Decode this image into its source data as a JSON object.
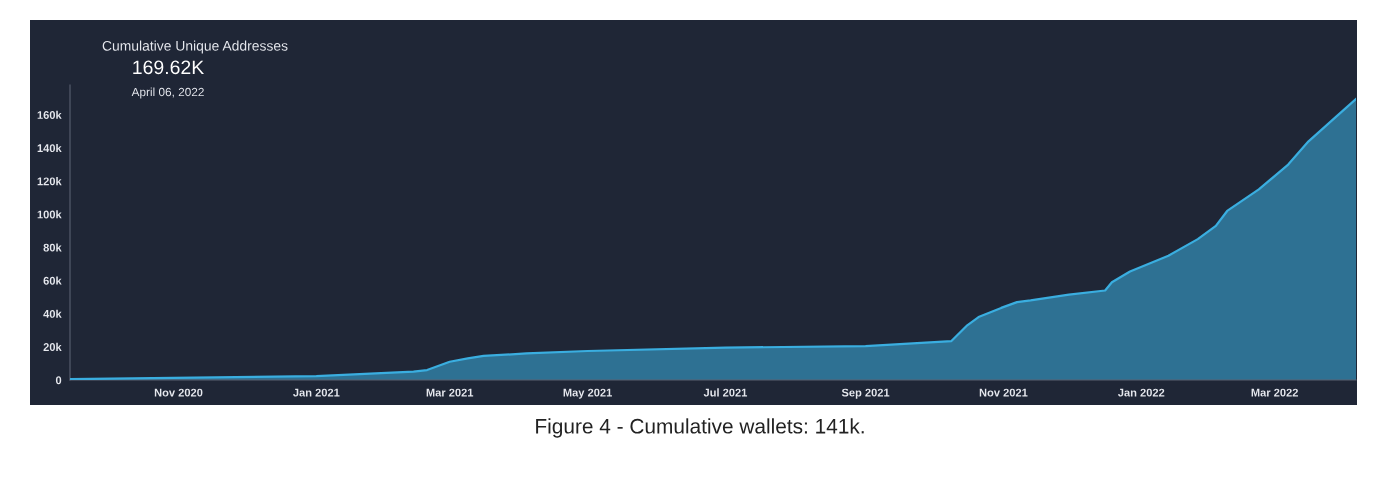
{
  "chart_data": {
    "type": "area",
    "title": "Cumulative Unique Addresses",
    "subtitle": "169.62K",
    "annotations": [
      "April 06, 2022",
      "Figure 4 - Cumulative wallets: 141k."
    ],
    "x": [
      "2020-09-14",
      "2021-01-01",
      "2021-02-13",
      "2021-02-19",
      "2021-03-01",
      "2021-03-09",
      "2021-03-16",
      "2021-04-04",
      "2021-05-01",
      "2021-07-01",
      "2021-09-01",
      "2021-10-09",
      "2021-10-16",
      "2021-10-21",
      "2021-10-31",
      "2021-11-07",
      "2021-11-13",
      "2021-11-30",
      "2021-12-16",
      "2021-12-19",
      "2021-12-27",
      "2022-01-13",
      "2022-01-26",
      "2022-02-03",
      "2022-02-08",
      "2022-02-22",
      "2022-03-07",
      "2022-03-16",
      "2022-03-28",
      "2022-04-06"
    ],
    "series": [
      {
        "color": "#3aaee0",
        "values": [
          500,
          2400,
          5000,
          6000,
          11000,
          13000,
          14500,
          16000,
          17500,
          19500,
          20500,
          23500,
          33000,
          38000,
          43500,
          47000,
          48000,
          51500,
          54000,
          59000,
          65500,
          75000,
          85000,
          93000,
          102000,
          115000,
          130000,
          144000,
          158600,
          169620
        ]
      }
    ],
    "xlim": [
      "2020-09-14",
      "2022-04-06"
    ],
    "xticks": [
      {
        "value": "2020-11-01",
        "label": "Nov 2020"
      },
      {
        "value": "2021-01-01",
        "label": "Jan 2021"
      },
      {
        "value": "2021-03-01",
        "label": "Mar 2021"
      },
      {
        "value": "2021-05-01",
        "label": "May 2021"
      },
      {
        "value": "2021-07-01",
        "label": "Jul 2021"
      },
      {
        "value": "2021-09-01",
        "label": "Sep 2021"
      },
      {
        "value": "2021-11-01",
        "label": "Nov 2021"
      },
      {
        "value": "2022-01-01",
        "label": "Jan 2022"
      },
      {
        "value": "2022-03-01",
        "label": "Mar 2022"
      }
    ],
    "ylim": [
      0,
      178000
    ],
    "yticks": [
      0,
      {
        "value": 20000,
        "label": "20k"
      },
      {
        "value": 40000,
        "label": "40k"
      },
      {
        "value": 60000,
        "label": "60k"
      },
      {
        "value": 80000,
        "label": "80k"
      },
      {
        "value": 100000,
        "label": "100k"
      },
      {
        "value": 120000,
        "label": "120k"
      },
      {
        "value": 140000,
        "label": "140k"
      },
      {
        "value": 160000,
        "label": "160k"
      }
    ],
    "grid": false,
    "legend": false
  }
}
